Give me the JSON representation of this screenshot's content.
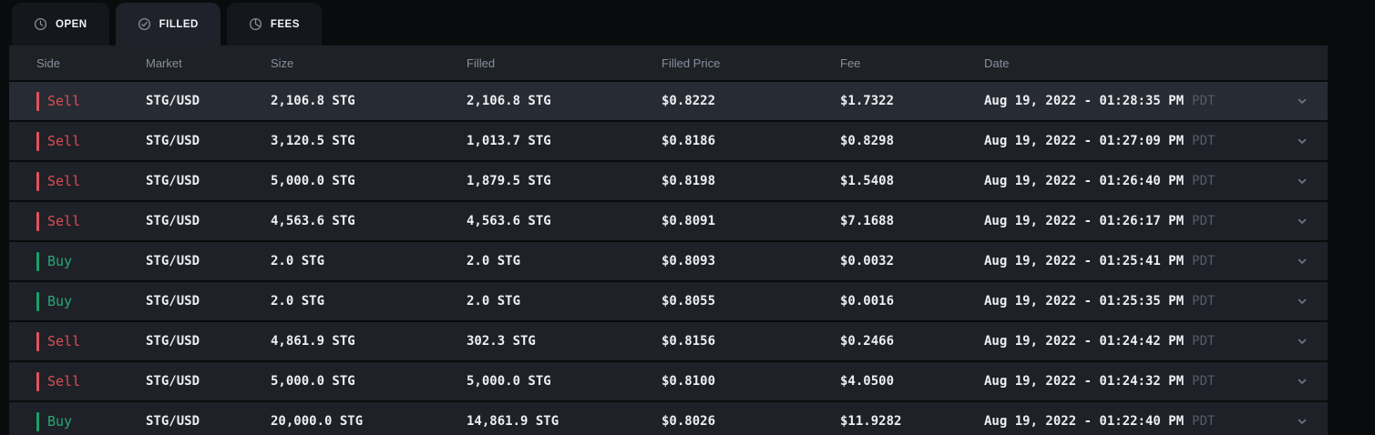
{
  "colors": {
    "page_bg": "#0a0b0d",
    "tab_inactive_bg": "#15171c",
    "tab_active_bg": "#1f222a",
    "header_bg": "#1e2126",
    "row_bg": "#1e2127",
    "row_highlight_bg": "#272b33",
    "sell_red": "#dd4d55",
    "buy_green": "#27a873",
    "text_primary": "#edeff2",
    "text_header": "#88909e",
    "text_muted": "#565c66"
  },
  "tabs": {
    "items": [
      {
        "id": "open",
        "label": "OPEN",
        "icon": "clock-icon",
        "active": false
      },
      {
        "id": "filled",
        "label": "FILLED",
        "icon": "check-circle-icon",
        "active": true
      },
      {
        "id": "fees",
        "label": "FEES",
        "icon": "pie-chart-icon",
        "active": false
      }
    ]
  },
  "table": {
    "columns": [
      "Side",
      "Market",
      "Size",
      "Filled",
      "Filled Price",
      "Fee",
      "Date"
    ],
    "rows": [
      {
        "side": "Sell",
        "market": "STG/USD",
        "size": "2,106.8 STG",
        "filled": "2,106.8 STG",
        "filled_price": "$0.8222",
        "fee": "$1.7322",
        "date": "Aug 19, 2022 - 01:28:35 PM",
        "timezone": "PDT",
        "highlighted": true
      },
      {
        "side": "Sell",
        "market": "STG/USD",
        "size": "3,120.5 STG",
        "filled": "1,013.7 STG",
        "filled_price": "$0.8186",
        "fee": "$0.8298",
        "date": "Aug 19, 2022 - 01:27:09 PM",
        "timezone": "PDT",
        "highlighted": false
      },
      {
        "side": "Sell",
        "market": "STG/USD",
        "size": "5,000.0 STG",
        "filled": "1,879.5 STG",
        "filled_price": "$0.8198",
        "fee": "$1.5408",
        "date": "Aug 19, 2022 - 01:26:40 PM",
        "timezone": "PDT",
        "highlighted": false
      },
      {
        "side": "Sell",
        "market": "STG/USD",
        "size": "4,563.6 STG",
        "filled": "4,563.6 STG",
        "filled_price": "$0.8091",
        "fee": "$7.1688",
        "date": "Aug 19, 2022 - 01:26:17 PM",
        "timezone": "PDT",
        "highlighted": false
      },
      {
        "side": "Buy",
        "market": "STG/USD",
        "size": "2.0 STG",
        "filled": "2.0 STG",
        "filled_price": "$0.8093",
        "fee": "$0.0032",
        "date": "Aug 19, 2022 - 01:25:41 PM",
        "timezone": "PDT",
        "highlighted": false
      },
      {
        "side": "Buy",
        "market": "STG/USD",
        "size": "2.0 STG",
        "filled": "2.0 STG",
        "filled_price": "$0.8055",
        "fee": "$0.0016",
        "date": "Aug 19, 2022 - 01:25:35 PM",
        "timezone": "PDT",
        "highlighted": false
      },
      {
        "side": "Sell",
        "market": "STG/USD",
        "size": "4,861.9 STG",
        "filled": "302.3 STG",
        "filled_price": "$0.8156",
        "fee": "$0.2466",
        "date": "Aug 19, 2022 - 01:24:42 PM",
        "timezone": "PDT",
        "highlighted": false
      },
      {
        "side": "Sell",
        "market": "STG/USD",
        "size": "5,000.0 STG",
        "filled": "5,000.0 STG",
        "filled_price": "$0.8100",
        "fee": "$4.0500",
        "date": "Aug 19, 2022 - 01:24:32 PM",
        "timezone": "PDT",
        "highlighted": false
      },
      {
        "side": "Buy",
        "market": "STG/USD",
        "size": "20,000.0 STG",
        "filled": "14,861.9 STG",
        "filled_price": "$0.8026",
        "fee": "$11.9282",
        "date": "Aug 19, 2022 - 01:22:40 PM",
        "timezone": "PDT",
        "highlighted": false
      }
    ]
  }
}
